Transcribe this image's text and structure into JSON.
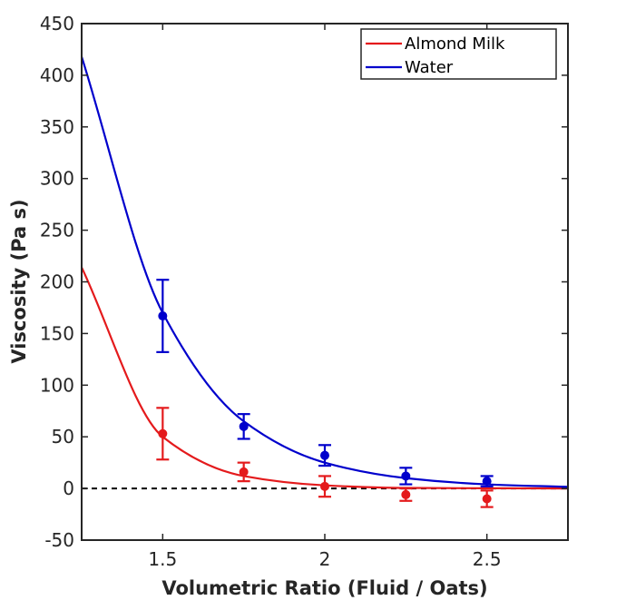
{
  "chart_data": {
    "type": "scatter",
    "title": "",
    "xlabel": "Volumetric Ratio (Fluid / Oats)",
    "ylabel": "Viscosity (Pa s)",
    "xlim": [
      1.25,
      2.75
    ],
    "ylim": [
      -50,
      450
    ],
    "xticks": [
      1.5,
      2,
      2.5
    ],
    "xtick_labels": [
      "1.5",
      "2",
      "2.5"
    ],
    "yticks": [
      -50,
      0,
      50,
      100,
      150,
      200,
      250,
      300,
      350,
      400,
      450
    ],
    "ytick_labels": [
      "-50",
      "0",
      "50",
      "100",
      "150",
      "200",
      "250",
      "300",
      "350",
      "400",
      "450"
    ],
    "grid": false,
    "legend_position": "top-right",
    "zero_reference_line": {
      "y": 0,
      "style": "dashed",
      "color": "#000000"
    },
    "series": [
      {
        "name": "Almond Milk",
        "color": "#e41a1c",
        "x": [
          1.5,
          1.75,
          2.0,
          2.25,
          2.5
        ],
        "y": [
          53,
          16,
          2,
          -6,
          -10
        ],
        "error": [
          25,
          9,
          10,
          6,
          8
        ],
        "fit_curve": {
          "x": [
            1.25,
            1.5,
            1.75,
            2.0,
            2.25,
            2.5,
            2.75
          ],
          "y": [
            214,
            50,
            12,
            3,
            0.5,
            0.2,
            0
          ]
        }
      },
      {
        "name": "Water",
        "color": "#0000cc",
        "x": [
          1.5,
          1.75,
          2.0,
          2.25,
          2.5
        ],
        "y": [
          167,
          60,
          32,
          12,
          7
        ],
        "error": [
          35,
          12,
          10,
          8,
          5
        ],
        "fit_curve": {
          "x": [
            1.25,
            1.5,
            1.75,
            2.0,
            2.25,
            2.5,
            2.75
          ],
          "y": [
            418,
            170,
            65,
            25,
            10,
            4,
            1.5
          ]
        }
      }
    ]
  }
}
